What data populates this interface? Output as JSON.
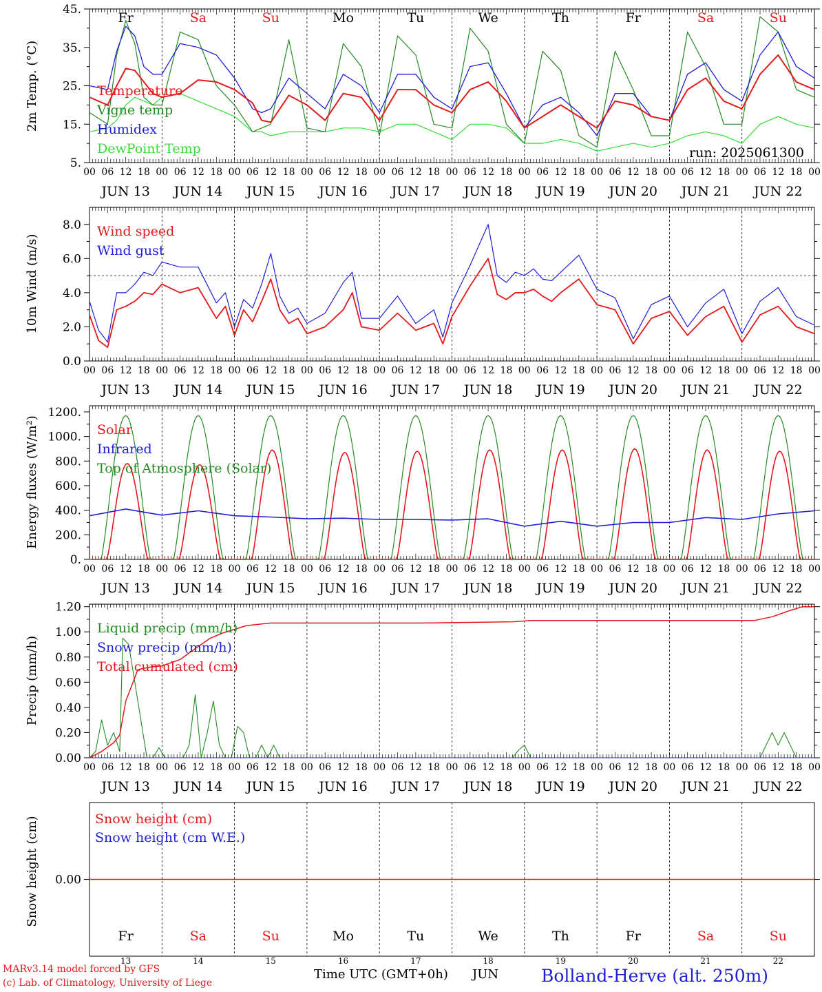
{
  "run_label": "run: 2025061300",
  "footer": {
    "model": "MARv3.14 model forced by GFS",
    "credit": "(c) Lab. of Climatology, University of Liege",
    "time_axis": "Time UTC (GMT+0h)",
    "month": "JUN",
    "station": "Bolland-Herve (alt. 250m)"
  },
  "colors": {
    "red": "#e31a1c",
    "blue": "#1f1fd6",
    "green": "#228b22",
    "lightgreen": "#33dd33",
    "weekend": "#e31a1c"
  },
  "days": [
    {
      "abbr": "Fr",
      "date": "JUN 13",
      "num": "13",
      "weekend": false
    },
    {
      "abbr": "Sa",
      "date": "JUN 14",
      "num": "14",
      "weekend": true
    },
    {
      "abbr": "Su",
      "date": "JUN 15",
      "num": "15",
      "weekend": true
    },
    {
      "abbr": "Mo",
      "date": "JUN 16",
      "num": "16",
      "weekend": false
    },
    {
      "abbr": "Tu",
      "date": "JUN 17",
      "num": "17",
      "weekend": false
    },
    {
      "abbr": "We",
      "date": "JUN 18",
      "num": "18",
      "weekend": false
    },
    {
      "abbr": "Th",
      "date": "JUN 19",
      "num": "19",
      "weekend": false
    },
    {
      "abbr": "Fr",
      "date": "JUN 20",
      "num": "20",
      "weekend": false
    },
    {
      "abbr": "Sa",
      "date": "JUN 21",
      "num": "21",
      "weekend": true
    },
    {
      "abbr": "Su",
      "date": "JUN 22",
      "num": "22",
      "weekend": true
    }
  ],
  "hour_ticks": [
    "00",
    "06",
    "12",
    "18"
  ],
  "chart_data": [
    {
      "type": "line",
      "ylabel": "2m Temp. (°C)",
      "ylim": [
        5,
        45
      ],
      "yticks": [
        "5.",
        "15.",
        "25.",
        "35.",
        "45."
      ],
      "x_unit": "hours since 2025-06-13 00 UTC",
      "series": [
        {
          "name": "Temperature",
          "color": "#e31a1c",
          "x": [
            0,
            6,
            9,
            12,
            15,
            18,
            21,
            24,
            30,
            36,
            42,
            48,
            54,
            57,
            60,
            66,
            72,
            78,
            84,
            90,
            96,
            102,
            108,
            114,
            120,
            126,
            132,
            138,
            144,
            150,
            156,
            162,
            168,
            174,
            180,
            186,
            192,
            198,
            204,
            210,
            216,
            222,
            228,
            234,
            240
          ],
          "values": [
            22,
            20,
            25,
            29.5,
            29,
            26,
            23,
            22,
            23,
            26.5,
            26,
            24,
            20.5,
            16,
            15.5,
            22.5,
            20,
            16,
            23,
            22,
            16,
            24,
            24,
            20,
            18,
            24,
            26,
            21,
            14,
            17,
            20,
            17,
            14,
            21,
            20,
            17,
            16,
            24,
            27,
            21,
            19,
            28,
            33,
            26,
            24
          ]
        },
        {
          "name": "Vigne temp",
          "color": "#228b22",
          "x": [
            0,
            6,
            9,
            12,
            15,
            18,
            21,
            24,
            30,
            36,
            42,
            48,
            54,
            57,
            60,
            66,
            72,
            78,
            84,
            90,
            96,
            102,
            108,
            114,
            120,
            126,
            132,
            138,
            144,
            150,
            156,
            162,
            168,
            174,
            180,
            186,
            192,
            198,
            204,
            210,
            216,
            222,
            228,
            234,
            240
          ],
          "values": [
            18,
            15,
            33,
            42,
            36,
            22,
            20,
            20,
            39,
            37,
            25,
            20,
            13,
            14,
            15,
            37,
            14,
            13,
            36,
            30,
            12,
            38,
            33,
            15,
            14,
            40,
            34,
            15,
            10,
            34,
            29,
            12,
            9,
            34,
            24,
            12,
            12,
            39,
            30,
            15,
            15,
            43,
            39,
            24,
            22
          ]
        },
        {
          "name": "Humidex",
          "color": "#1f1fd6",
          "x": [
            0,
            6,
            9,
            12,
            15,
            18,
            21,
            24,
            30,
            36,
            42,
            48,
            54,
            57,
            60,
            66,
            72,
            78,
            84,
            90,
            96,
            102,
            108,
            114,
            120,
            126,
            132,
            138,
            144,
            150,
            156,
            162,
            168,
            174,
            180,
            186,
            192,
            198,
            204,
            210,
            216,
            222,
            228,
            234,
            240
          ],
          "values": [
            25,
            24,
            34,
            40.5,
            38,
            30,
            28,
            28,
            36,
            35,
            33,
            27,
            19,
            18,
            19,
            27,
            23,
            19,
            28,
            25,
            18,
            28,
            28,
            22,
            19,
            30,
            31,
            23,
            14,
            20,
            22,
            18,
            12,
            23,
            23,
            17,
            16,
            28,
            31,
            24,
            21,
            33,
            39,
            30,
            27
          ]
        },
        {
          "name": "DewPoint Temp",
          "color": "#33dd33",
          "x": [
            0,
            6,
            9,
            12,
            15,
            18,
            21,
            24,
            30,
            36,
            42,
            48,
            54,
            57,
            60,
            66,
            72,
            78,
            84,
            90,
            96,
            102,
            108,
            114,
            120,
            126,
            132,
            138,
            144,
            150,
            156,
            162,
            168,
            174,
            180,
            186,
            192,
            198,
            204,
            210,
            216,
            222,
            228,
            234,
            240
          ],
          "values": [
            13,
            14,
            16,
            20,
            22,
            21,
            20,
            22,
            23,
            21,
            19,
            17,
            13,
            13,
            12,
            13,
            13,
            13,
            14,
            14,
            13,
            15,
            15,
            13,
            11,
            15,
            15,
            14,
            10,
            10,
            11,
            10,
            8,
            9,
            10,
            9,
            10,
            12,
            13,
            12,
            10,
            15,
            17,
            15,
            14
          ]
        }
      ]
    },
    {
      "type": "line",
      "ylabel": "10m Wind (m/s)",
      "ylim": [
        0,
        9
      ],
      "yticks": [
        "0.0",
        "2.0",
        "4.0",
        "6.0",
        "8.0"
      ],
      "reference_line": 5,
      "x_unit": "hours since 2025-06-13 00 UTC",
      "series": [
        {
          "name": "Wind speed",
          "color": "#e31a1c",
          "x": [
            0,
            3,
            6,
            9,
            12,
            15,
            18,
            21,
            24,
            30,
            36,
            42,
            45,
            48,
            51,
            54,
            57,
            60,
            63,
            66,
            69,
            72,
            78,
            84,
            87,
            90,
            96,
            102,
            108,
            114,
            117,
            120,
            126,
            132,
            135,
            138,
            141,
            144,
            147,
            150,
            153,
            156,
            162,
            168,
            174,
            180,
            186,
            192,
            198,
            204,
            210,
            216,
            222,
            228,
            234,
            240
          ],
          "values": [
            2.7,
            1.2,
            0.8,
            3.0,
            3.2,
            3.5,
            4.0,
            3.9,
            4.5,
            4.0,
            4.3,
            2.5,
            3.2,
            1.5,
            3.0,
            2.3,
            3.5,
            4.8,
            3.0,
            2.2,
            2.5,
            1.6,
            2.0,
            3.0,
            4.0,
            2.0,
            1.8,
            2.8,
            1.8,
            2.2,
            1.0,
            2.6,
            4.4,
            6.0,
            3.9,
            3.6,
            4.0,
            4.0,
            4.2,
            3.8,
            3.5,
            4.0,
            4.8,
            3.3,
            3.0,
            1.0,
            2.5,
            2.9,
            1.5,
            2.6,
            3.2,
            1.1,
            2.7,
            3.2,
            2.0,
            1.6
          ]
        },
        {
          "name": "Wind gust",
          "color": "#1f1fd6",
          "x": [
            0,
            3,
            6,
            9,
            12,
            15,
            18,
            21,
            24,
            30,
            36,
            42,
            45,
            48,
            51,
            54,
            57,
            60,
            63,
            66,
            69,
            72,
            78,
            84,
            87,
            90,
            96,
            102,
            108,
            114,
            117,
            120,
            126,
            132,
            135,
            138,
            141,
            144,
            147,
            150,
            153,
            156,
            162,
            168,
            174,
            180,
            186,
            192,
            198,
            204,
            210,
            216,
            222,
            228,
            234,
            240
          ],
          "values": [
            3.5,
            1.8,
            1.1,
            4.0,
            4.0,
            4.5,
            5.2,
            5.0,
            5.8,
            5.5,
            5.5,
            3.4,
            4.0,
            2.0,
            3.6,
            3.1,
            4.5,
            6.3,
            3.8,
            2.8,
            3.1,
            2.2,
            2.8,
            4.6,
            5.2,
            2.5,
            2.5,
            3.8,
            2.2,
            3.0,
            1.4,
            3.4,
            5.6,
            8.0,
            5.0,
            4.6,
            5.2,
            5.0,
            5.4,
            4.8,
            4.7,
            5.2,
            6.2,
            4.2,
            3.7,
            1.3,
            3.3,
            3.8,
            2.0,
            3.4,
            4.2,
            1.6,
            3.5,
            4.3,
            2.6,
            2.1
          ]
        }
      ]
    },
    {
      "type": "line",
      "ylabel": "Energy fluxes (W/m²)",
      "ylim": [
        0,
        1250
      ],
      "yticks": [
        "0.",
        "200.",
        "400.",
        "600.",
        "800.",
        "1000.",
        "1200."
      ],
      "x_unit": "hours since 2025-06-13 00 UTC",
      "series": [
        {
          "name": "Solar",
          "color": "#e31a1c",
          "daily_peak": [
            780,
            770,
            890,
            870,
            880,
            890,
            890,
            900,
            890,
            880
          ]
        },
        {
          "name": "Infrared",
          "color": "#1f1fd6",
          "x": [
            0,
            12,
            24,
            36,
            48,
            60,
            72,
            84,
            96,
            108,
            120,
            132,
            144,
            156,
            168,
            180,
            192,
            204,
            216,
            228,
            240
          ],
          "values": [
            355,
            410,
            360,
            395,
            355,
            345,
            330,
            335,
            325,
            325,
            320,
            330,
            270,
            310,
            270,
            300,
            300,
            340,
            325,
            370,
            395
          ]
        },
        {
          "name": "Top of Atmosphere (Solar)",
          "color": "#228b22",
          "daily_peak": [
            1170,
            1170,
            1170,
            1170,
            1170,
            1170,
            1170,
            1170,
            1170,
            1170
          ]
        }
      ]
    },
    {
      "type": "line",
      "ylabel": "Precip (mm/h)",
      "ylim": [
        0,
        1.22
      ],
      "yticks": [
        "0.00",
        "0.20",
        "0.40",
        "0.60",
        "0.80",
        "1.00",
        "1.20"
      ],
      "x_unit": "hours since 2025-06-13 00 UTC",
      "series": [
        {
          "name": "Liquid precip (mm/h)",
          "color": "#228b22",
          "x": [
            0,
            2,
            4,
            6,
            8,
            10,
            11,
            13,
            15,
            17,
            19,
            21,
            23,
            25,
            27,
            29,
            31,
            33,
            35,
            37,
            39,
            41,
            43,
            45,
            47,
            49,
            51,
            53,
            55,
            57,
            59,
            61,
            63,
            65,
            67,
            69,
            140,
            142,
            144,
            146,
            216,
            218,
            220,
            222,
            224,
            226,
            228,
            230,
            232,
            234,
            240
          ],
          "values": [
            0,
            0.05,
            0.3,
            0.1,
            0.2,
            0.05,
            0.95,
            0.9,
            0.6,
            0.3,
            0,
            0,
            0.08,
            0,
            0,
            0,
            0,
            0.1,
            0.5,
            0,
            0.2,
            0.45,
            0.1,
            0,
            0,
            0.25,
            0.2,
            0,
            0,
            0.1,
            0,
            0.1,
            0,
            0,
            0,
            0,
            0,
            0.06,
            0.1,
            0,
            0,
            0,
            0,
            0,
            0.1,
            0.2,
            0.1,
            0.2,
            0.1,
            0,
            0
          ]
        },
        {
          "name": "Snow precip (mm/h)",
          "color": "#1f1fd6",
          "x": [
            0,
            240
          ],
          "values": [
            0,
            0
          ]
        },
        {
          "name": "Total cumulated (cm)",
          "color": "#e31a1c",
          "x": [
            0,
            4,
            8,
            10,
            12,
            16,
            20,
            24,
            30,
            34,
            40,
            44,
            48,
            52,
            56,
            60,
            70,
            110,
            140,
            146,
            150,
            200,
            220,
            226,
            232,
            236,
            240
          ],
          "values": [
            0,
            0.05,
            0.12,
            0.18,
            0.45,
            0.7,
            0.72,
            0.73,
            0.78,
            0.85,
            0.95,
            0.99,
            1.02,
            1.05,
            1.06,
            1.07,
            1.07,
            1.07,
            1.08,
            1.09,
            1.09,
            1.09,
            1.09,
            1.12,
            1.17,
            1.2,
            1.2
          ]
        }
      ]
    },
    {
      "type": "line",
      "ylabel": "Snow height (cm)",
      "yticks": [
        "0.00"
      ],
      "x_unit": "hours since 2025-06-13 00 UTC",
      "series": [
        {
          "name": "Snow height (cm)",
          "color": "#e31a1c",
          "x": [
            0,
            240
          ],
          "values": [
            0,
            0
          ]
        },
        {
          "name": "Snow height (cm W.E.)",
          "color": "#1f1fd6",
          "x": [
            0,
            240
          ],
          "values": [
            0,
            0
          ]
        }
      ]
    }
  ]
}
